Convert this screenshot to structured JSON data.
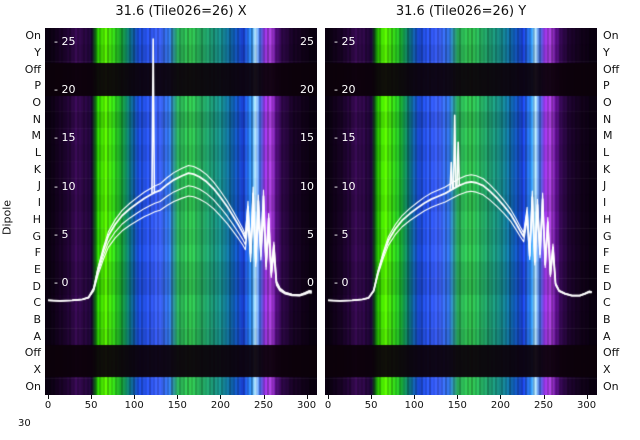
{
  "titles": {
    "left": "31.6 (Tile026=26) X",
    "right": "31.6 (Tile026=26) Y"
  },
  "ylabel": "Dipole",
  "corner_label": "30",
  "dipole_labels": [
    "On",
    "Y",
    "Off",
    "P",
    "O",
    "N",
    "M",
    "L",
    "K",
    "J",
    "I",
    "H",
    "G",
    "F",
    "E",
    "D",
    "C",
    "B",
    "A",
    "Off",
    "X",
    "On"
  ],
  "chart_data": {
    "type": "heatmap",
    "description": "Two dipole-vs-channel waterfall heatmaps (X and Y polarisation) with white bandpass power curves overlaid",
    "x_ticks": [
      0,
      50,
      100,
      150,
      200,
      250,
      300
    ],
    "x_range": [
      0,
      306
    ],
    "value_ticks": [
      25,
      20,
      15,
      10,
      5,
      0
    ],
    "tick_prefix": "- ",
    "rows": [
      "On",
      "Y",
      "Off",
      "P",
      "O",
      "N",
      "M",
      "L",
      "K",
      "J",
      "I",
      "H",
      "G",
      "F",
      "E",
      "D",
      "C",
      "B",
      "A",
      "Off",
      "X",
      "On"
    ],
    "row_brightness": [
      0.97,
      0.9,
      0.93,
      0.96,
      1.02,
      0.9,
      1.0,
      0.94,
      1.0,
      0.97,
      0.92,
      1.0,
      0.96,
      1.03,
      0.93,
      0.9,
      1.0,
      0.95,
      0.9,
      0.93,
      0.92,
      0.98
    ],
    "off_bands": [
      [
        35,
        68
      ],
      [
        317,
        349
      ]
    ],
    "off_band_color": "#0c010a",
    "line_color": "#ffffff",
    "baseline": -1.8,
    "colormap_stops": [
      [
        0,
        "#0a0110"
      ],
      [
        12,
        "#150220"
      ],
      [
        22,
        "#1f0431"
      ],
      [
        32,
        "#360a50"
      ],
      [
        42,
        "#2a0742"
      ],
      [
        50,
        "#1b0533"
      ],
      [
        54,
        "#0b5a12"
      ],
      [
        58,
        "#2ecc00"
      ],
      [
        66,
        "#55e800"
      ],
      [
        74,
        "#36d312"
      ],
      [
        84,
        "#19a52e"
      ],
      [
        94,
        "#0c6e79"
      ],
      [
        104,
        "#1745c6"
      ],
      [
        116,
        "#2a52e8"
      ],
      [
        128,
        "#3a5cf0"
      ],
      [
        140,
        "#2f6fd8"
      ],
      [
        150,
        "#28a857"
      ],
      [
        165,
        "#2fbb4a"
      ],
      [
        178,
        "#23a35c"
      ],
      [
        190,
        "#1b9070"
      ],
      [
        202,
        "#15828a"
      ],
      [
        214,
        "#0f5aa6"
      ],
      [
        226,
        "#1a3ed2"
      ],
      [
        236,
        "#2f8fe8"
      ],
      [
        240,
        "#b8e6ff"
      ],
      [
        245,
        "#3f6ee0"
      ],
      [
        251,
        "#8c2fd0"
      ],
      [
        258,
        "#a63fd6"
      ],
      [
        264,
        "#570f84"
      ],
      [
        272,
        "#2c0745"
      ],
      [
        283,
        "#190327"
      ],
      [
        295,
        "#110219"
      ],
      [
        306,
        "#0a0110"
      ]
    ],
    "column_noise": [
      0.62,
      0.91,
      0.33,
      0.78,
      0.15,
      0.85,
      0.49,
      0.97,
      0.26,
      0.7,
      0.54,
      0.88,
      0.12,
      0.66,
      0.41,
      0.93,
      0.3,
      0.76,
      0.58,
      0.19,
      0.83,
      0.45,
      0.99,
      0.08,
      0.73,
      0.52,
      0.87,
      0.24,
      0.64,
      0.38,
      0.95,
      0.17,
      0.8,
      0.47,
      0.9,
      0.29,
      0.69,
      0.56,
      0.1,
      0.74
    ],
    "panels": [
      {
        "title": "31.6 (Tile026=26) X",
        "pol": "X",
        "right_edge_ticks": true,
        "line_factors": [
          1,
          0.9,
          1.06,
          0.82
        ],
        "spikes": [
          [
            122,
            25.3
          ]
        ],
        "line": [
          [
            0,
            -1.8
          ],
          [
            14,
            -1.85
          ],
          [
            28,
            -1.8
          ],
          [
            40,
            -1.7
          ],
          [
            47,
            -1.5
          ],
          [
            53,
            -0.6
          ],
          [
            58,
            1.4
          ],
          [
            64,
            3.3
          ],
          [
            70,
            4.9
          ],
          [
            78,
            6.1
          ],
          [
            86,
            7.0
          ],
          [
            95,
            7.7
          ],
          [
            104,
            8.3
          ],
          [
            112,
            8.8
          ],
          [
            118,
            9.1
          ],
          [
            124,
            9.4
          ],
          [
            130,
            9.6
          ],
          [
            138,
            10.2
          ],
          [
            146,
            10.7
          ],
          [
            155,
            11.1
          ],
          [
            163,
            11.4
          ],
          [
            169,
            11.3
          ],
          [
            176,
            11.0
          ],
          [
            184,
            10.5
          ],
          [
            192,
            9.8
          ],
          [
            200,
            8.9
          ],
          [
            208,
            7.9
          ],
          [
            215,
            6.9
          ],
          [
            221,
            6.0
          ],
          [
            226,
            5.2
          ],
          [
            229,
            4.6
          ],
          [
            232,
            7.9
          ],
          [
            235,
            3.1
          ],
          [
            238,
            9.3
          ],
          [
            241,
            2.5
          ],
          [
            244,
            8.5
          ],
          [
            247,
            3.3
          ],
          [
            250,
            9.0
          ],
          [
            253,
            2.1
          ],
          [
            256,
            6.7
          ],
          [
            259,
            1.1
          ],
          [
            262,
            3.9
          ],
          [
            265,
            0.1
          ],
          [
            269,
            -0.6
          ],
          [
            275,
            -1.0
          ],
          [
            283,
            -1.2
          ],
          [
            292,
            -1.25
          ],
          [
            298,
            -1.05
          ],
          [
            303,
            -0.85
          ],
          [
            306,
            -0.9
          ]
        ]
      },
      {
        "title": "31.6 (Tile026=26) Y",
        "pol": "Y",
        "right_edge_ticks": false,
        "line_factors": [
          1,
          0.92,
          1.06
        ],
        "spikes": [
          [
            143,
            12.5
          ],
          [
            147,
            17.4
          ],
          [
            151,
            14.6
          ]
        ],
        "line": [
          [
            0,
            -1.8
          ],
          [
            14,
            -1.85
          ],
          [
            28,
            -1.8
          ],
          [
            40,
            -1.7
          ],
          [
            47,
            -1.55
          ],
          [
            53,
            -0.8
          ],
          [
            58,
            1.1
          ],
          [
            64,
            2.9
          ],
          [
            70,
            4.4
          ],
          [
            78,
            5.6
          ],
          [
            86,
            6.5
          ],
          [
            95,
            7.2
          ],
          [
            104,
            7.8
          ],
          [
            112,
            8.3
          ],
          [
            120,
            8.7
          ],
          [
            128,
            9.0
          ],
          [
            136,
            9.3
          ],
          [
            144,
            9.7
          ],
          [
            152,
            10.1
          ],
          [
            160,
            10.4
          ],
          [
            166,
            10.5
          ],
          [
            172,
            10.4
          ],
          [
            180,
            10.1
          ],
          [
            188,
            9.5
          ],
          [
            196,
            8.8
          ],
          [
            204,
            8.0
          ],
          [
            212,
            7.1
          ],
          [
            218,
            6.2
          ],
          [
            223,
            5.4
          ],
          [
            227,
            4.8
          ],
          [
            231,
            7.3
          ],
          [
            234,
            2.8
          ],
          [
            237,
            8.9
          ],
          [
            240,
            2.2
          ],
          [
            243,
            8.1
          ],
          [
            246,
            3.0
          ],
          [
            249,
            8.7
          ],
          [
            252,
            1.9
          ],
          [
            255,
            6.3
          ],
          [
            258,
            0.9
          ],
          [
            261,
            3.7
          ],
          [
            264,
            -0.1
          ],
          [
            268,
            -0.8
          ],
          [
            275,
            -1.1
          ],
          [
            283,
            -1.3
          ],
          [
            292,
            -1.3
          ],
          [
            298,
            -1.1
          ],
          [
            303,
            -0.9
          ],
          [
            306,
            -0.95
          ]
        ]
      }
    ]
  }
}
